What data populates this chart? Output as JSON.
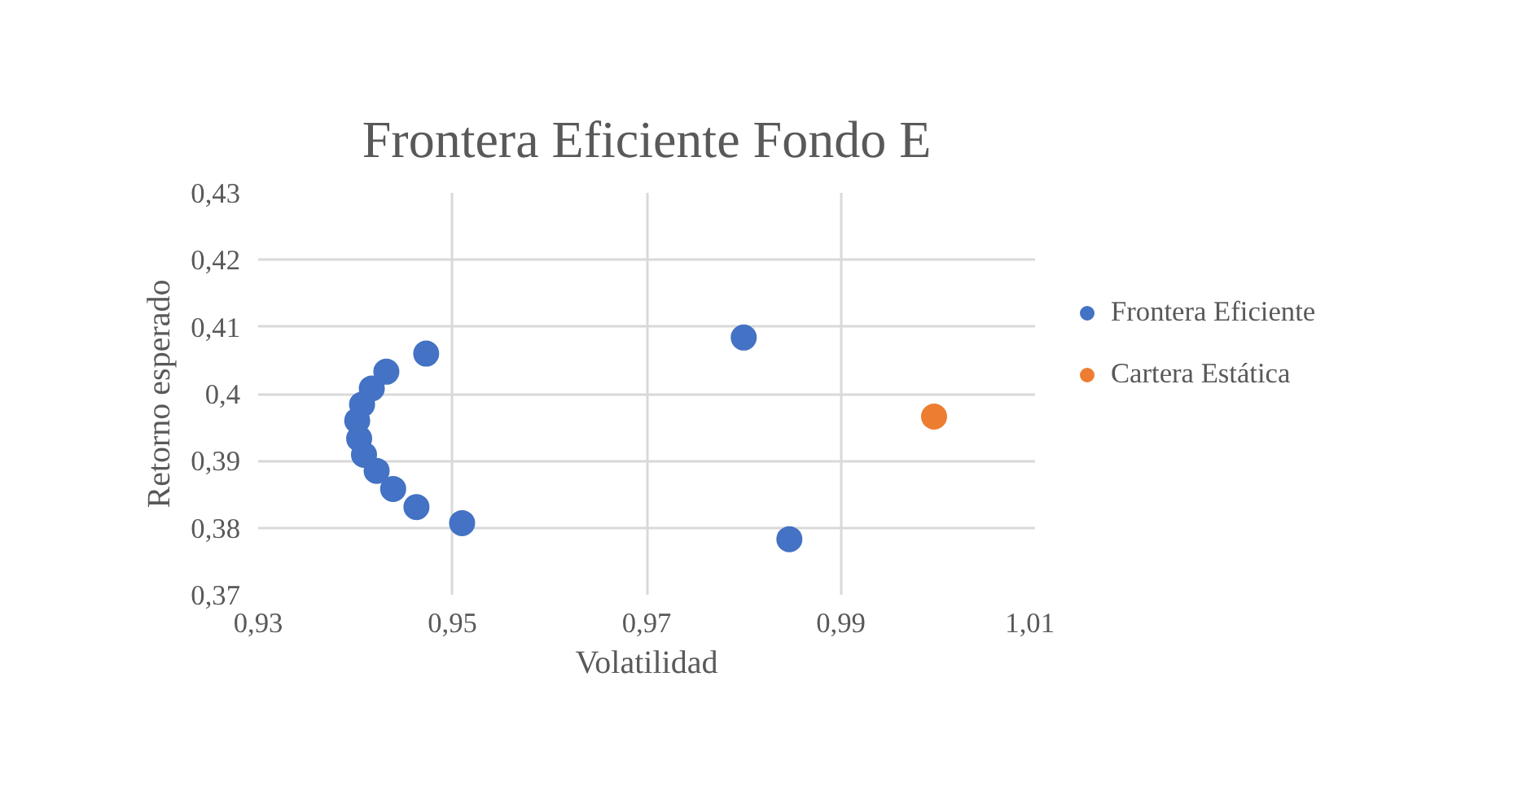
{
  "chart_data": {
    "type": "scatter",
    "title": "Frontera Eficiente Fondo E",
    "xlabel": "Volatilidad",
    "ylabel": "Retorno esperado",
    "series": [
      {
        "name": "Frontera Eficiente",
        "color": "#4472c4",
        "x": [
          0.9473,
          0.9432,
          0.9417,
          0.9407,
          0.9402,
          0.9404,
          0.9409,
          0.9422,
          0.9439,
          0.9463,
          0.951,
          0.98,
          0.9847
        ],
        "values": [
          0.406,
          0.4033,
          0.4008,
          0.3984,
          0.396,
          0.3933,
          0.3909,
          0.3885,
          0.3858,
          0.3831,
          0.3807,
          0.4084,
          0.3783
        ]
      },
      {
        "name": "Cartera Estática",
        "color": "#ed7d31",
        "x": [
          0.9996
        ],
        "values": [
          0.3966
        ]
      }
    ],
    "xlim": [
      0.93,
      1.01
    ],
    "ylim": [
      0.37,
      0.43
    ],
    "xticks": [
      {
        "value": 0.93,
        "label": "0,93"
      },
      {
        "value": 0.95,
        "label": "0,95"
      },
      {
        "value": 0.97,
        "label": "0,97"
      },
      {
        "value": 0.99,
        "label": "0,99"
      },
      {
        "value": 1.01,
        "label": "1,01"
      }
    ],
    "yticks": [
      {
        "value": 0.37,
        "label": "0,37"
      },
      {
        "value": 0.38,
        "label": "0,38"
      },
      {
        "value": 0.39,
        "label": "0,39"
      },
      {
        "value": 0.4,
        "label": "0,4"
      },
      {
        "value": 0.41,
        "label": "0,41"
      },
      {
        "value": 0.42,
        "label": "0,42"
      },
      {
        "value": 0.43,
        "label": "0,43"
      }
    ],
    "grid": true,
    "legend": "right",
    "marker": "circle"
  }
}
